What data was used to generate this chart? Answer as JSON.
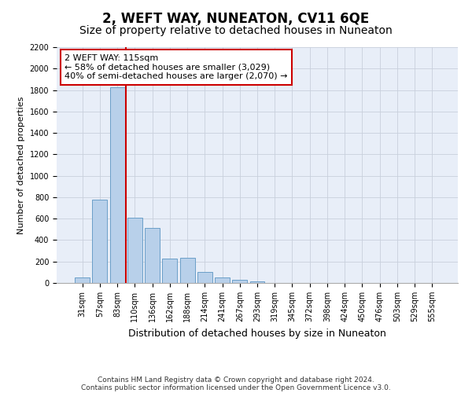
{
  "title": "2, WEFT WAY, NUNEATON, CV11 6QE",
  "subtitle": "Size of property relative to detached houses in Nuneaton",
  "xlabel": "Distribution of detached houses by size in Nuneaton",
  "ylabel": "Number of detached properties",
  "categories": [
    "31sqm",
    "57sqm",
    "83sqm",
    "110sqm",
    "136sqm",
    "162sqm",
    "188sqm",
    "214sqm",
    "241sqm",
    "267sqm",
    "293sqm",
    "319sqm",
    "345sqm",
    "372sqm",
    "398sqm",
    "424sqm",
    "450sqm",
    "476sqm",
    "503sqm",
    "529sqm",
    "555sqm"
  ],
  "values": [
    50,
    775,
    1825,
    610,
    515,
    230,
    235,
    100,
    50,
    30,
    15,
    0,
    0,
    0,
    0,
    0,
    0,
    0,
    0,
    0,
    0
  ],
  "bar_color": "#b8d0ea",
  "bar_edge_color": "#6a9fc8",
  "vline_x_index": 3,
  "vline_color": "#cc0000",
  "annotation_text": "2 WEFT WAY: 115sqm\n← 58% of detached houses are smaller (3,029)\n40% of semi-detached houses are larger (2,070) →",
  "annotation_box_facecolor": "#ffffff",
  "annotation_box_edgecolor": "#cc0000",
  "ylim_max": 2200,
  "yticks": [
    0,
    200,
    400,
    600,
    800,
    1000,
    1200,
    1400,
    1600,
    1800,
    2000,
    2200
  ],
  "footnote1": "Contains HM Land Registry data © Crown copyright and database right 2024.",
  "footnote2": "Contains public sector information licensed under the Open Government Licence v3.0.",
  "title_fontsize": 12,
  "subtitle_fontsize": 10,
  "xlabel_fontsize": 9,
  "ylabel_fontsize": 8,
  "tick_fontsize": 7,
  "annot_fontsize": 8,
  "footnote_fontsize": 6.5,
  "bg_color": "#e8eef8",
  "grid_color": "#c8d0dc"
}
